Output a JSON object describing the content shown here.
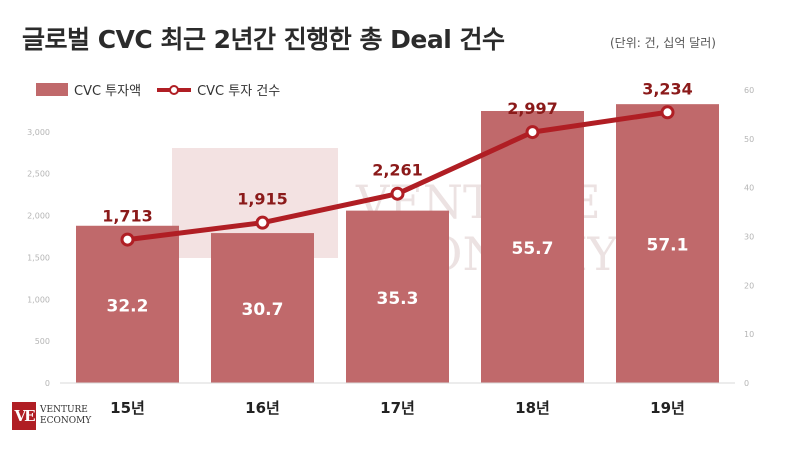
{
  "header": {
    "title": "글로벌 CVC 최근 2년간 진행한 총 Deal 건수",
    "unit_note": "(단위: 건, 십억 달러)"
  },
  "legend": {
    "bar_label": "CVC 투자액",
    "line_label": "CVC 투자 건수"
  },
  "logo": {
    "mark": "VE",
    "line1": "VENTURE",
    "line2": "ECONOMY"
  },
  "watermark": {
    "line1": "VENTURE",
    "line2": "ECONOMY"
  },
  "colors": {
    "bar": "#c0696b",
    "line": "#b01e24",
    "label_dark": "#8b1a1a",
    "axis_text": "#b5b5b5"
  },
  "chart_data": {
    "type": "bar",
    "categories": [
      "15년",
      "16년",
      "17년",
      "18년",
      "19년"
    ],
    "series": [
      {
        "name": "CVC 투자액",
        "type": "bar",
        "axis": "right",
        "values": [
          32.2,
          30.7,
          35.3,
          55.7,
          57.1
        ],
        "labels": [
          "32.2",
          "30.7",
          "35.3",
          "55.7",
          "57.1"
        ]
      },
      {
        "name": "CVC 투자 건수",
        "type": "line",
        "axis": "left",
        "values": [
          1713,
          1915,
          2261,
          2997,
          3234
        ],
        "labels": [
          "1,713",
          "1,915",
          "2,261",
          "2,997",
          "3,234"
        ]
      }
    ],
    "y_left": {
      "ylim": [
        0,
        3500
      ],
      "ticks": [
        0,
        500,
        1000,
        1500,
        2000,
        2500,
        3000
      ],
      "tick_labels": [
        "0",
        "500",
        "1,000",
        "1,500",
        "2,000",
        "2,500",
        "3,000"
      ]
    },
    "y_right": {
      "ylim": [
        0,
        60
      ],
      "ticks": [
        0,
        10,
        20,
        30,
        40,
        50,
        60
      ],
      "tick_labels": [
        "0",
        "10",
        "20",
        "30",
        "40",
        "50",
        "60"
      ]
    },
    "grid": false,
    "legend_position": "top-left"
  }
}
